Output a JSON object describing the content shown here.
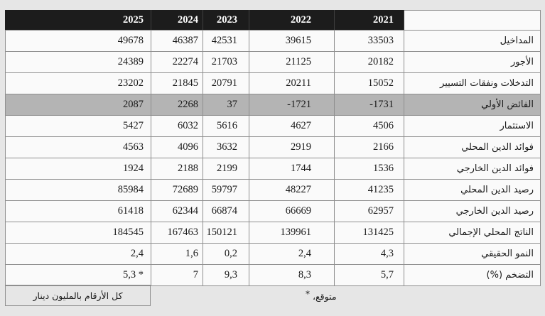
{
  "page": {
    "background": "#e6e6e6"
  },
  "table": {
    "header_bg": "#1c1c1c",
    "highlight_row_bg": "#b4b4b4",
    "columns": [
      "2025",
      "2024",
      "2023",
      "2022",
      "2021"
    ],
    "rows": [
      {
        "label": "المداخيل",
        "values": [
          "49678",
          "46387",
          "42531",
          "39615",
          "33503"
        ],
        "highlight": false
      },
      {
        "label": "الأجور",
        "values": [
          "24389",
          "22274",
          "21703",
          "21125",
          "20182"
        ],
        "highlight": false
      },
      {
        "label": "التدخلات ونفقات التسيير",
        "values": [
          "23202",
          "21845",
          "20791",
          "20211",
          "15052"
        ],
        "highlight": false
      },
      {
        "label": "الفائض الأولي",
        "values": [
          "2087",
          "2268",
          "37",
          "-1721",
          "-1731"
        ],
        "highlight": true
      },
      {
        "label": "الاستثمار",
        "values": [
          "5427",
          "6032",
          "5616",
          "4627",
          "4506"
        ],
        "highlight": false
      },
      {
        "label": "فوائد الدين المحلي",
        "values": [
          "4563",
          "4096",
          "3632",
          "2919",
          "2166"
        ],
        "highlight": false
      },
      {
        "label": "فوائد الدين الخارجي",
        "values": [
          "1924",
          "2188",
          "2199",
          "1744",
          "1536"
        ],
        "highlight": false
      },
      {
        "label": "رصيد الدين المحلي",
        "values": [
          "85984",
          "72689",
          "59797",
          "48227",
          "41235"
        ],
        "highlight": false
      },
      {
        "label": "رصيد الدين الخارجي",
        "values": [
          "61418",
          "62344",
          "66874",
          "66669",
          "62957"
        ],
        "highlight": false
      },
      {
        "label": "الناتج المحلي الإجمالي",
        "values": [
          "184545",
          "167463",
          "150121",
          "139961",
          "131425"
        ],
        "highlight": false
      },
      {
        "label": "النمو الحقيقي",
        "values": [
          "2,4",
          "1,6",
          "0,2",
          "2,4",
          "4,3"
        ],
        "highlight": false
      },
      {
        "label": "التضخم (%)",
        "values": [
          "5,3 *",
          "7",
          "9,3",
          "8,3",
          "5,7"
        ],
        "highlight": false
      }
    ]
  },
  "footer": {
    "unit_note": "كل الأرقام بالمليون دينار",
    "footnote_marker": "*",
    "footnote_text": "متوقع،"
  }
}
